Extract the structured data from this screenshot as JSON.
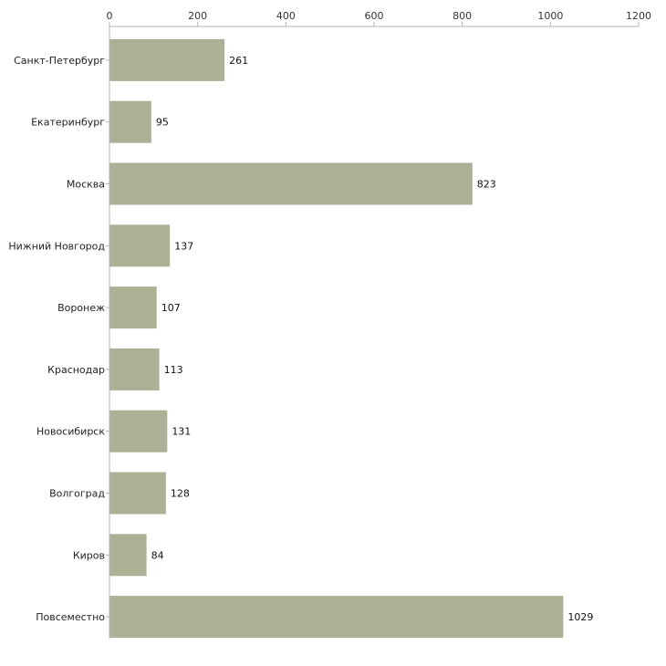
{
  "chart_data": {
    "type": "bar",
    "orientation": "horizontal",
    "title": "",
    "xlabel": "",
    "ylabel": "",
    "categories": [
      "Санкт-Петербург",
      "Екатеринбург",
      "Москва",
      "Нижний Новгород",
      "Воронеж",
      "Краснодар",
      "Новосибирск",
      "Волгоград",
      "Киров",
      "Повсеместно"
    ],
    "values": [
      261,
      95,
      823,
      137,
      107,
      113,
      131,
      128,
      84,
      1029
    ],
    "xlim": [
      0,
      1200
    ],
    "xticks": [
      0,
      200,
      400,
      600,
      800,
      1000,
      1200
    ],
    "axis_position": "top",
    "grid": false,
    "legend": "none",
    "bar_color": "#acb196"
  }
}
